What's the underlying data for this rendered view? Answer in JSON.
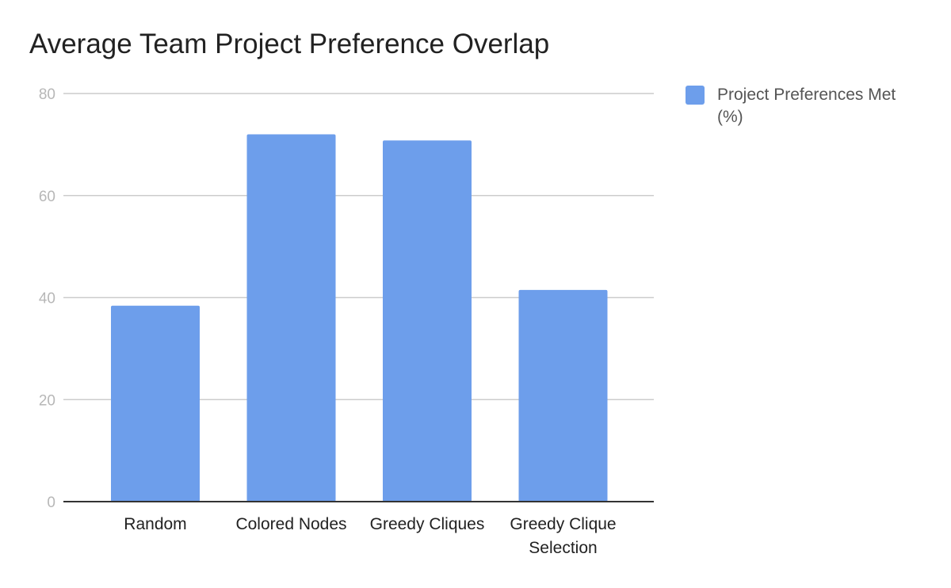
{
  "colors": {
    "bar": "#6d9eeb",
    "grid": "#cccccc",
    "axis": "#333333",
    "tick_label": "#b7b7b7",
    "category_label": "#222222",
    "title": "#222222",
    "legend_text": "#555555"
  },
  "chart_data": {
    "type": "bar",
    "title": "Average Team Project Preference Overlap",
    "xlabel": "",
    "ylabel": "",
    "categories": [
      "Random",
      "Colored Nodes",
      "Greedy Cliques",
      "Greedy Clique Selection"
    ],
    "series": [
      {
        "name": "Project Preferences Met (%)",
        "values": [
          38.4,
          72.0,
          70.8,
          41.5
        ]
      }
    ],
    "ylim": [
      0,
      80
    ],
    "yticks": [
      "0",
      "20",
      "40",
      "60",
      "80"
    ],
    "grid": true,
    "legend_position": "right"
  }
}
